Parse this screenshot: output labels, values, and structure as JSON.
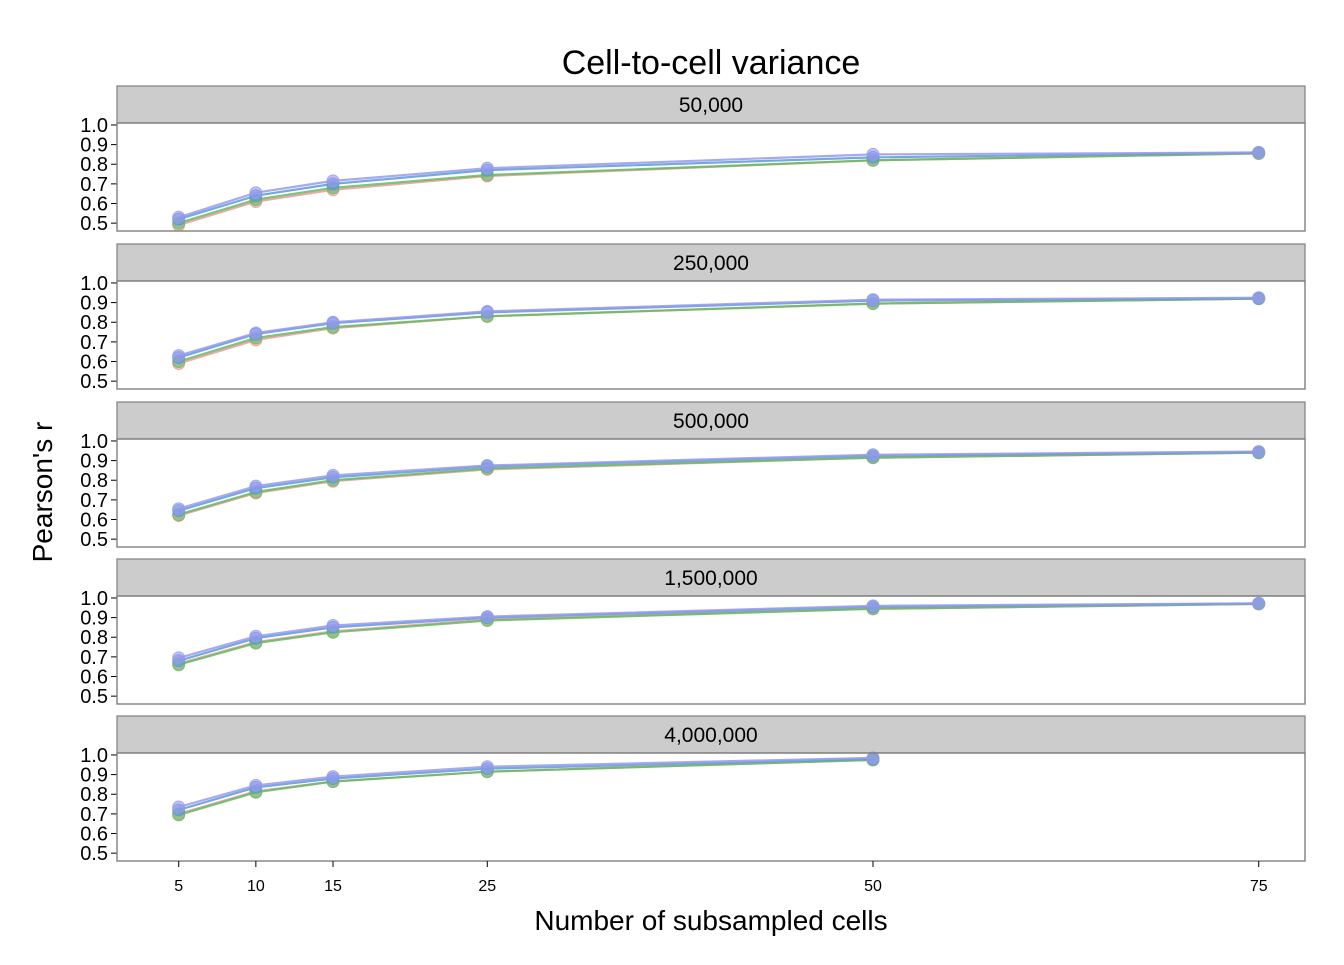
{
  "chart_data": {
    "type": "line",
    "title": "Cell-to-cell variance",
    "xlabel": "Number of subsampled cells",
    "ylabel": "Pearson's r",
    "x_ticks": [
      5,
      10,
      15,
      25,
      50,
      75
    ],
    "xlim": [
      1,
      78
    ],
    "y_ticks": [
      "0.5",
      "0.6",
      "0.7",
      "0.8",
      "0.9",
      "1.0"
    ],
    "ylim": [
      0.46,
      1.01
    ],
    "series_colors": [
      "#e89a9a",
      "#66bb66",
      "#5b9bd5",
      "#9999ee"
    ],
    "panels": [
      {
        "label": "50,000",
        "x": [
          5,
          10,
          15,
          25,
          50,
          75
        ],
        "series": [
          {
            "values": [
              0.49,
              0.61,
              0.67,
              0.74,
              0.82,
              0.855
            ]
          },
          {
            "values": [
              0.5,
              0.62,
              0.68,
              0.745,
              0.82,
              0.855
            ]
          },
          {
            "values": [
              0.52,
              0.64,
              0.7,
              0.77,
              0.835,
              0.86
            ]
          },
          {
            "values": [
              0.53,
              0.655,
              0.715,
              0.78,
              0.85,
              0.86
            ]
          }
        ]
      },
      {
        "label": "250,000",
        "x": [
          5,
          10,
          15,
          25,
          50,
          75
        ],
        "series": [
          {
            "values": [
              0.59,
              0.71,
              0.77,
              0.83,
              0.895,
              0.92
            ]
          },
          {
            "values": [
              0.6,
              0.72,
              0.775,
              0.83,
              0.895,
              0.92
            ]
          },
          {
            "values": [
              0.62,
              0.74,
              0.795,
              0.85,
              0.91,
              0.922
            ]
          },
          {
            "values": [
              0.63,
              0.745,
              0.8,
              0.855,
              0.915,
              0.925
            ]
          }
        ]
      },
      {
        "label": "500,000",
        "x": [
          5,
          10,
          15,
          25,
          50,
          75
        ],
        "series": [
          {
            "values": [
              0.62,
              0.735,
              0.795,
              0.855,
              0.915,
              0.94
            ]
          },
          {
            "values": [
              0.625,
              0.74,
              0.8,
              0.86,
              0.915,
              0.94
            ]
          },
          {
            "values": [
              0.645,
              0.76,
              0.815,
              0.87,
              0.925,
              0.944
            ]
          },
          {
            "values": [
              0.655,
              0.77,
              0.825,
              0.875,
              0.93,
              0.946
            ]
          }
        ]
      },
      {
        "label": "1,500,000",
        "x": [
          5,
          10,
          15,
          25,
          50,
          75
        ],
        "series": [
          {
            "values": [
              0.665,
              0.775,
              0.83,
              0.89,
              0.945,
              0.97
            ]
          },
          {
            "values": [
              0.66,
              0.77,
              0.825,
              0.885,
              0.945,
              0.97
            ]
          },
          {
            "values": [
              0.68,
              0.795,
              0.85,
              0.9,
              0.955,
              0.972
            ]
          },
          {
            "values": [
              0.695,
              0.805,
              0.86,
              0.905,
              0.96,
              0.973
            ]
          }
        ]
      },
      {
        "label": "4,000,000",
        "x": [
          5,
          10,
          15,
          25,
          50
        ],
        "series": [
          {
            "values": [
              0.7,
              0.815,
              0.865,
              0.915,
              0.975
            ]
          },
          {
            "values": [
              0.695,
              0.81,
              0.865,
              0.915,
              0.975
            ]
          },
          {
            "values": [
              0.72,
              0.835,
              0.88,
              0.93,
              0.98
            ]
          },
          {
            "values": [
              0.735,
              0.845,
              0.89,
              0.94,
              0.985
            ]
          }
        ]
      }
    ]
  }
}
